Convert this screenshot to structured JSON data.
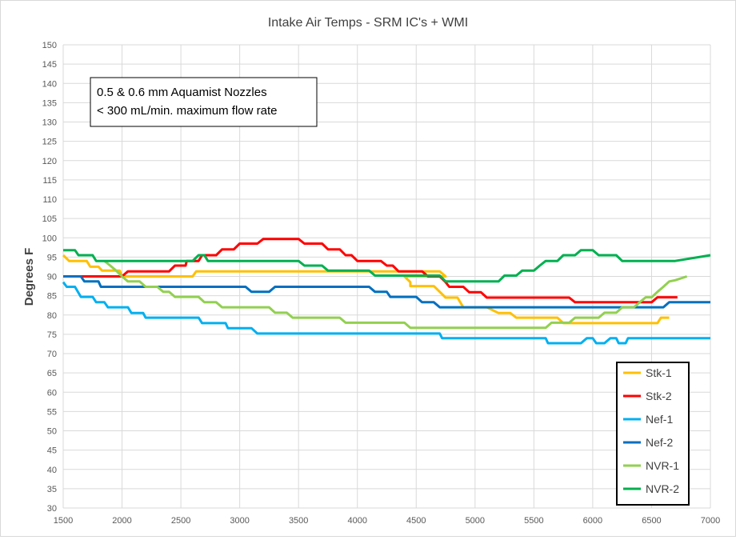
{
  "chart_data": {
    "type": "line",
    "title": "Intake Air Temps - SRM IC's + WMI",
    "xlabel": "",
    "ylabel": "Degrees F",
    "xlim": [
      1500,
      7000
    ],
    "ylim": [
      30,
      150
    ],
    "x_ticks": [
      "1500",
      "2000",
      "2500",
      "3000",
      "3500",
      "4000",
      "4500",
      "5000",
      "5500",
      "6000",
      "6500",
      "7000"
    ],
    "y_ticks": [
      "30",
      "35",
      "40",
      "45",
      "50",
      "55",
      "60",
      "65",
      "70",
      "75",
      "80",
      "85",
      "90",
      "95",
      "100",
      "105",
      "110",
      "115",
      "120",
      "125",
      "130",
      "135",
      "140",
      "145",
      "150"
    ],
    "grid": true,
    "legend_position": "bottom-right",
    "annotation": [
      "0.5 & 0.6 mm Aquamist Nozzles",
      "< 300 mL/min. maximum flow rate"
    ],
    "series": [
      {
        "name": "Stk-1",
        "color": "#FFC000",
        "points": [
          [
            1500,
            95.5
          ],
          [
            1550,
            94
          ],
          [
            1700,
            94
          ],
          [
            1730,
            92.5
          ],
          [
            1800,
            92.5
          ],
          [
            1830,
            91.5
          ],
          [
            1980,
            91.5
          ],
          [
            2000,
            90
          ],
          [
            2600,
            90
          ],
          [
            2630,
            91.3
          ],
          [
            4700,
            91.3
          ],
          [
            4750,
            90
          ],
          [
            4400,
            90
          ],
          [
            4450,
            88.5
          ],
          [
            4450,
            87.5
          ],
          [
            4650,
            87.5
          ],
          [
            4700,
            86
          ],
          [
            4750,
            84.5
          ],
          [
            4850,
            84.5
          ],
          [
            4900,
            82
          ],
          [
            5000,
            82
          ],
          [
            5050,
            82
          ],
          [
            5100,
            82
          ],
          [
            5200,
            80.5
          ],
          [
            5300,
            80.5
          ],
          [
            5350,
            79.3
          ],
          [
            5700,
            79.3
          ],
          [
            5750,
            77.9
          ],
          [
            6550,
            77.9
          ],
          [
            6580,
            79.3
          ],
          [
            6650,
            79.3
          ]
        ]
      },
      {
        "name": "Stk-2",
        "color": "#FF0000",
        "points": [
          [
            1650,
            90
          ],
          [
            2000,
            90
          ],
          [
            2050,
            91.3
          ],
          [
            2400,
            91.3
          ],
          [
            2450,
            92.8
          ],
          [
            2540,
            92.8
          ],
          [
            2550,
            94
          ],
          [
            2650,
            94
          ],
          [
            2680,
            95.5
          ],
          [
            2800,
            95.5
          ],
          [
            2850,
            97
          ],
          [
            2950,
            97
          ],
          [
            3000,
            98.5
          ],
          [
            3150,
            98.5
          ],
          [
            3200,
            99.7
          ],
          [
            3500,
            99.7
          ],
          [
            3550,
            98.5
          ],
          [
            3700,
            98.5
          ],
          [
            3750,
            97
          ],
          [
            3850,
            97
          ],
          [
            3900,
            95.5
          ],
          [
            3950,
            95.5
          ],
          [
            4000,
            94
          ],
          [
            4200,
            94
          ],
          [
            4250,
            92.8
          ],
          [
            4300,
            92.8
          ],
          [
            4350,
            91.3
          ],
          [
            4550,
            91.3
          ],
          [
            4600,
            90
          ],
          [
            4700,
            90
          ],
          [
            4750,
            88.5
          ],
          [
            4780,
            87.3
          ],
          [
            4900,
            87.3
          ],
          [
            4950,
            85.9
          ],
          [
            5050,
            85.9
          ],
          [
            5100,
            84.5
          ],
          [
            5800,
            84.5
          ],
          [
            5850,
            83.3
          ],
          [
            6300,
            83.3
          ],
          [
            6350,
            83.3
          ],
          [
            6500,
            83.3
          ],
          [
            6550,
            84.6
          ],
          [
            6720,
            84.6
          ]
        ]
      },
      {
        "name": "Nef-1",
        "color": "#00B0F0",
        "points": [
          [
            1500,
            88.5
          ],
          [
            1530,
            87.3
          ],
          [
            1600,
            87.3
          ],
          [
            1650,
            84.7
          ],
          [
            1750,
            84.7
          ],
          [
            1780,
            83.3
          ],
          [
            1850,
            83.3
          ],
          [
            1880,
            82
          ],
          [
            2050,
            82
          ],
          [
            2080,
            80.5
          ],
          [
            2180,
            80.5
          ],
          [
            2200,
            79.3
          ],
          [
            2650,
            79.3
          ],
          [
            2680,
            77.9
          ],
          [
            2880,
            77.9
          ],
          [
            2900,
            76.6
          ],
          [
            3100,
            76.6
          ],
          [
            3150,
            75.2
          ],
          [
            4700,
            75.2
          ],
          [
            4720,
            74
          ],
          [
            5600,
            74
          ],
          [
            5620,
            72.7
          ],
          [
            5900,
            72.7
          ],
          [
            5950,
            74
          ],
          [
            6000,
            74
          ],
          [
            6030,
            72.7
          ],
          [
            6100,
            72.7
          ],
          [
            6150,
            74
          ],
          [
            6200,
            74
          ],
          [
            6220,
            72.7
          ],
          [
            6280,
            72.7
          ],
          [
            6300,
            74
          ],
          [
            7000,
            74
          ]
        ]
      },
      {
        "name": "Nef-2",
        "color": "#0070C0",
        "points": [
          [
            1500,
            90
          ],
          [
            1650,
            90
          ],
          [
            1680,
            88.7
          ],
          [
            1800,
            88.7
          ],
          [
            1820,
            87.3
          ],
          [
            3050,
            87.3
          ],
          [
            3100,
            86
          ],
          [
            3250,
            86
          ],
          [
            3300,
            87.3
          ],
          [
            4100,
            87.3
          ],
          [
            4150,
            86
          ],
          [
            4250,
            86
          ],
          [
            4280,
            84.7
          ],
          [
            4500,
            84.7
          ],
          [
            4550,
            83.3
          ],
          [
            4650,
            83.3
          ],
          [
            4700,
            82
          ],
          [
            6600,
            82
          ],
          [
            6650,
            83.3
          ],
          [
            7000,
            83.3
          ]
        ]
      },
      {
        "name": "NVR-1",
        "color": "#92D050",
        "points": [
          [
            1850,
            94
          ],
          [
            1900,
            92.8
          ],
          [
            1950,
            91.5
          ],
          [
            2000,
            90
          ],
          [
            2050,
            88.7
          ],
          [
            2150,
            88.7
          ],
          [
            2200,
            87.3
          ],
          [
            2300,
            87.3
          ],
          [
            2350,
            86
          ],
          [
            2400,
            86
          ],
          [
            2450,
            84.7
          ],
          [
            2650,
            84.7
          ],
          [
            2700,
            83.3
          ],
          [
            2800,
            83.3
          ],
          [
            2850,
            82
          ],
          [
            3250,
            82
          ],
          [
            3300,
            80.6
          ],
          [
            3400,
            80.6
          ],
          [
            3450,
            79.3
          ],
          [
            3850,
            79.3
          ],
          [
            3900,
            78
          ],
          [
            4400,
            78
          ],
          [
            4450,
            76.7
          ],
          [
            5600,
            76.7
          ],
          [
            5650,
            78
          ],
          [
            5800,
            78
          ],
          [
            5850,
            79.3
          ],
          [
            6050,
            79.3
          ],
          [
            6100,
            80.6
          ],
          [
            6200,
            80.6
          ],
          [
            6250,
            82
          ],
          [
            6350,
            82
          ],
          [
            6400,
            83.3
          ],
          [
            6450,
            84.6
          ],
          [
            6500,
            84.6
          ],
          [
            6550,
            86
          ],
          [
            6600,
            87.3
          ],
          [
            6650,
            88.7
          ],
          [
            6700,
            89
          ],
          [
            6800,
            90
          ]
        ]
      },
      {
        "name": "NVR-2",
        "color": "#00B050",
        "points": [
          [
            1500,
            96.8
          ],
          [
            1600,
            96.8
          ],
          [
            1630,
            95.5
          ],
          [
            1750,
            95.5
          ],
          [
            1780,
            94
          ],
          [
            2600,
            94
          ],
          [
            2650,
            95.5
          ],
          [
            2700,
            95.5
          ],
          [
            2730,
            94
          ],
          [
            3500,
            94
          ],
          [
            3550,
            92.8
          ],
          [
            3700,
            92.8
          ],
          [
            3750,
            91.5
          ],
          [
            4100,
            91.5
          ],
          [
            4150,
            90.2
          ],
          [
            4700,
            90.2
          ],
          [
            4750,
            88.7
          ],
          [
            5200,
            88.7
          ],
          [
            5250,
            90.2
          ],
          [
            5350,
            90.2
          ],
          [
            5400,
            91.5
          ],
          [
            5500,
            91.5
          ],
          [
            5550,
            92.8
          ],
          [
            5600,
            94
          ],
          [
            5700,
            94
          ],
          [
            5750,
            95.5
          ],
          [
            5850,
            95.5
          ],
          [
            5900,
            96.8
          ],
          [
            6000,
            96.8
          ],
          [
            6050,
            95.5
          ],
          [
            6200,
            95.5
          ],
          [
            6250,
            94
          ],
          [
            6700,
            94
          ],
          [
            7000,
            95.5
          ]
        ]
      }
    ]
  }
}
